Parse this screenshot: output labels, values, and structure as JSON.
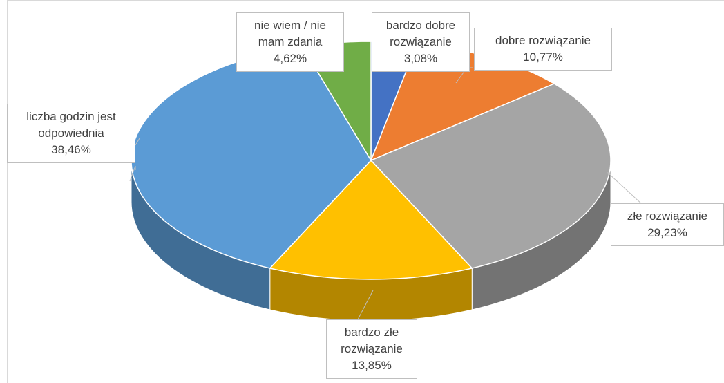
{
  "chart_data": {
    "type": "pie3d",
    "categories": [
      "bardzo dobre rozwiązanie",
      "dobre rozwiązanie",
      "złe rozwiązanie",
      "bardzo złe rozwiązanie",
      "liczba godzin jest odpowiednia",
      "nie wiem / nie mam zdania"
    ],
    "values": [
      3.08,
      10.77,
      29.23,
      13.85,
      38.46,
      4.62
    ],
    "value_labels": [
      "3,08%",
      "10,77%",
      "29,23%",
      "13,85%",
      "38,46%",
      "4,62%"
    ],
    "colors": [
      "#4472c4",
      "#ed7d31",
      "#a5a5a5",
      "#ffc000",
      "#5b9bd5",
      "#70ad47"
    ]
  }
}
